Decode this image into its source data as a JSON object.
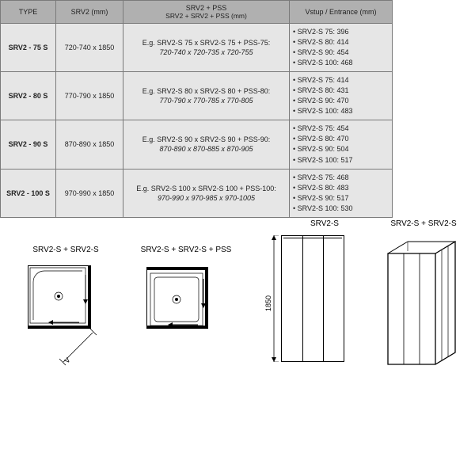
{
  "table": {
    "headers": {
      "type": "TYPE",
      "srv2": "SRV2 (mm)",
      "combo_top": "SRV2 + PSS",
      "combo_sub": "SRV2 + SRV2 + PSS (mm)",
      "vstup": "Vstup / Entrance (mm)"
    },
    "rows": [
      {
        "type": "SRV2 - 75 S",
        "srv2": "720-740 x 1850",
        "combo_l1": "E.g. SRV2-S 75 x SRV2-S 75 + PSS-75:",
        "combo_l2": "720-740 x 720-735 x 720-755",
        "vstup": [
          "• SRV2-S 75:   396",
          "• SRV2-S 80:   414",
          "• SRV2-S 90:   454",
          "• SRV2-S 100: 468"
        ]
      },
      {
        "type": "SRV2 - 80 S",
        "srv2": "770-790 x 1850",
        "combo_l1": "E.g. SRV2-S 80 x SRV2-S 80 + PSS-80:",
        "combo_l2": "770-790 x 770-785 x 770-805",
        "vstup": [
          "• SRV2-S 75:   414",
          "• SRV2-S 80:   431",
          "• SRV2-S 90:   470",
          "• SRV2-S 100: 483"
        ]
      },
      {
        "type": "SRV2 - 90 S",
        "srv2": "870-890 x 1850",
        "combo_l1": "E.g. SRV2-S 90 x SRV2-S 90 + PSS-90:",
        "combo_l2": "870-890 x 870-885 x 870-905",
        "vstup": [
          "• SRV2-S 75:   454",
          "• SRV2-S 80:   470",
          "• SRV2-S 90:   504",
          "• SRV2-S 100: 517"
        ]
      },
      {
        "type": "SRV2 - 100 S",
        "srv2": "970-990 x 1850",
        "combo_l1": "E.g. SRV2-S 100 x SRV2-S 100 + PSS-100:",
        "combo_l2": "970-990 x 970-985 x 970-1005",
        "vstup": [
          "• SRV2-S 75:   468",
          "• SRV2-S 80:   483",
          "• SRV2-S 90:   517",
          "• SRV2-S 100: 530"
        ]
      }
    ]
  },
  "diagrams": {
    "plan1": {
      "label": "SRV2-S + SRV2-S",
      "dim_letter": "V"
    },
    "plan2": {
      "label": "SRV2-S + SRV2-S + PSS"
    },
    "elev1": {
      "label": "SRV2-S",
      "height_mm": "1850"
    },
    "elev2": {
      "label": "SRV2-S + SRV2-S"
    }
  },
  "style": {
    "header_bg": "#b0b0b0",
    "cell_bg": "#e6e6e6",
    "border": "#7a7a7a",
    "text": "#222222",
    "diagram_stroke": "#000000"
  }
}
